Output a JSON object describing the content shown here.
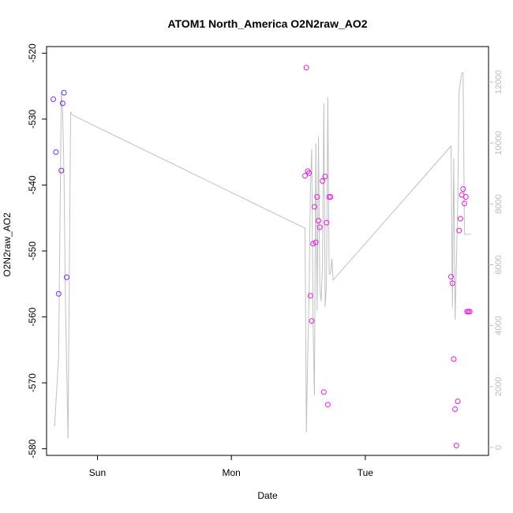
{
  "chart_data": {
    "type": "line+scatter",
    "title": "ATOM1 North_America O2N2raw_AO2",
    "xlabel": "Date",
    "ylabel": "O2N2raw_AO2",
    "y_left_lim": [
      -581,
      -519
    ],
    "y_left_ticks": [
      -520,
      -530,
      -540,
      -550,
      -560,
      -570,
      -580
    ],
    "y_right_ticks": [
      0,
      2000,
      4000,
      6000,
      8000,
      10000,
      12000
    ],
    "x_lim": [
      -0.38,
      2.92
    ],
    "x_ticks": [
      {
        "label": "Sun",
        "pos": 0
      },
      {
        "label": "Mon",
        "pos": 1
      },
      {
        "label": "Tue",
        "pos": 2
      }
    ],
    "right_axis_color": "#bbbbbb",
    "line_color": "#c0c0c0",
    "series": [
      {
        "name": "",
        "axis": "right",
        "style": "line",
        "x": [
          -0.32,
          -0.29,
          -0.27,
          -0.26,
          -0.25,
          -0.24,
          -0.22,
          -0.2,
          -0.18,
          1.55,
          1.56,
          1.57,
          1.58,
          1.59,
          1.6,
          1.61,
          1.62,
          1.63,
          1.64,
          1.65,
          1.66,
          1.67,
          1.68,
          1.69,
          1.7,
          1.71,
          1.72,
          1.73,
          1.74,
          1.75,
          1.76,
          2.64,
          2.65,
          2.66,
          2.67,
          2.68,
          2.69,
          2.7,
          2.71,
          2.72,
          2.73,
          2.74,
          2.75,
          2.76,
          2.77,
          2.78,
          2.79
        ],
        "y": [
          700,
          3000,
          11700,
          11000,
          9000,
          5000,
          300,
          11000,
          10900,
          7200,
          500,
          3000,
          5000,
          8500,
          9800,
          4000,
          1700,
          10000,
          4500,
          10200,
          5300,
          4800,
          6000,
          11300,
          4600,
          5400,
          11500,
          5700,
          5700,
          6200,
          5500,
          9900,
          4600,
          9500,
          4200,
          6000,
          8000,
          11700,
          12000,
          12300,
          12300,
          7000,
          7000,
          7000,
          7000,
          7000,
          7000
        ]
      },
      {
        "name": "",
        "axis": "left",
        "style": "points",
        "color": "#7a28e8",
        "x": [
          -0.33,
          -0.31,
          -0.29,
          -0.27,
          -0.26,
          -0.25,
          -0.23
        ],
        "y": [
          -527,
          -535,
          -556.5,
          -537.8,
          -527.6,
          -526,
          -554
        ]
      },
      {
        "name": "",
        "axis": "left",
        "style": "points",
        "color": "#e619de",
        "x": [
          1.55,
          1.56,
          1.57,
          1.58,
          1.59,
          1.6,
          1.61,
          1.62,
          1.63,
          1.64,
          1.65,
          1.66,
          1.68,
          1.69,
          1.7,
          1.71,
          1.72,
          1.73,
          1.74,
          2.64,
          2.65,
          2.66,
          2.67,
          2.68,
          2.69,
          2.7,
          2.71,
          2.72,
          2.73,
          2.74,
          2.75,
          2.76,
          2.77,
          2.78
        ],
        "y": [
          -538.6,
          -522.2,
          -537.9,
          -538.2,
          -556.8,
          -560.6,
          -548.9,
          -543.3,
          -548.7,
          -541.8,
          -545.4,
          -546.4,
          -539.4,
          -571.4,
          -538.7,
          -545.7,
          -573.3,
          -541.8,
          -541.8,
          -553.9,
          -554.9,
          -566.4,
          -574,
          -579.5,
          -572.8,
          -546.9,
          -545.1,
          -541.5,
          -540.6,
          -542.8,
          -541.8,
          -559.2,
          -559.2,
          -559.2
        ]
      }
    ]
  }
}
